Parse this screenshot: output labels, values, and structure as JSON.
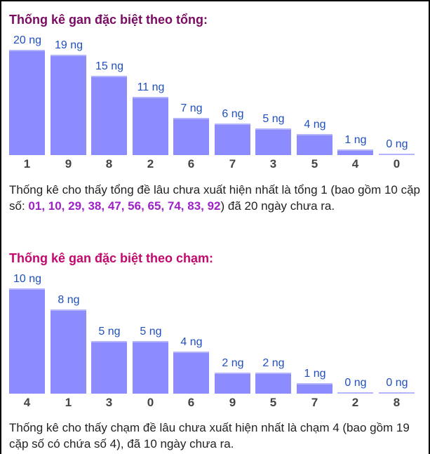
{
  "section1": {
    "title": "Thống kê gan đặc biệt theo tổng:",
    "desc_before": "Thống kê cho thấy tổng đề lâu chưa xuất hiện nhất là tổng 1 (bao gồm 10 cặp số: ",
    "desc_highlight": "01, 10, 29, 38, 47, 56, 65, 74, 83, 92",
    "desc_after": ") đã 20 ngày chưa ra."
  },
  "section2": {
    "title": "Thống kê gan đặc biệt theo chạm:",
    "desc": "Thống kê cho thấy chạm đề lâu chưa xuất hiện nhất là chạm 4 (bao gồm 19 cặp số có chứa số 4), đã 10 ngày chưa ra."
  },
  "colors": {
    "bar": "#8c8cff",
    "value_label": "#1f4fbf",
    "category": "#444444"
  },
  "chart_data": [
    {
      "type": "bar",
      "title": "Thống kê gan đặc biệt theo tổng:",
      "categories": [
        "1",
        "9",
        "8",
        "2",
        "6",
        "7",
        "3",
        "5",
        "4",
        "0"
      ],
      "values": [
        20,
        19,
        15,
        11,
        7,
        6,
        5,
        4,
        1,
        0
      ],
      "value_suffix": " ng",
      "ylim": [
        0,
        20
      ]
    },
    {
      "type": "bar",
      "title": "Thống kê gan đặc biệt theo chạm:",
      "categories": [
        "4",
        "1",
        "3",
        "0",
        "6",
        "9",
        "5",
        "7",
        "2",
        "8"
      ],
      "values": [
        10,
        8,
        5,
        5,
        4,
        2,
        2,
        1,
        0,
        0
      ],
      "value_suffix": " ng",
      "ylim": [
        0,
        10
      ]
    }
  ]
}
